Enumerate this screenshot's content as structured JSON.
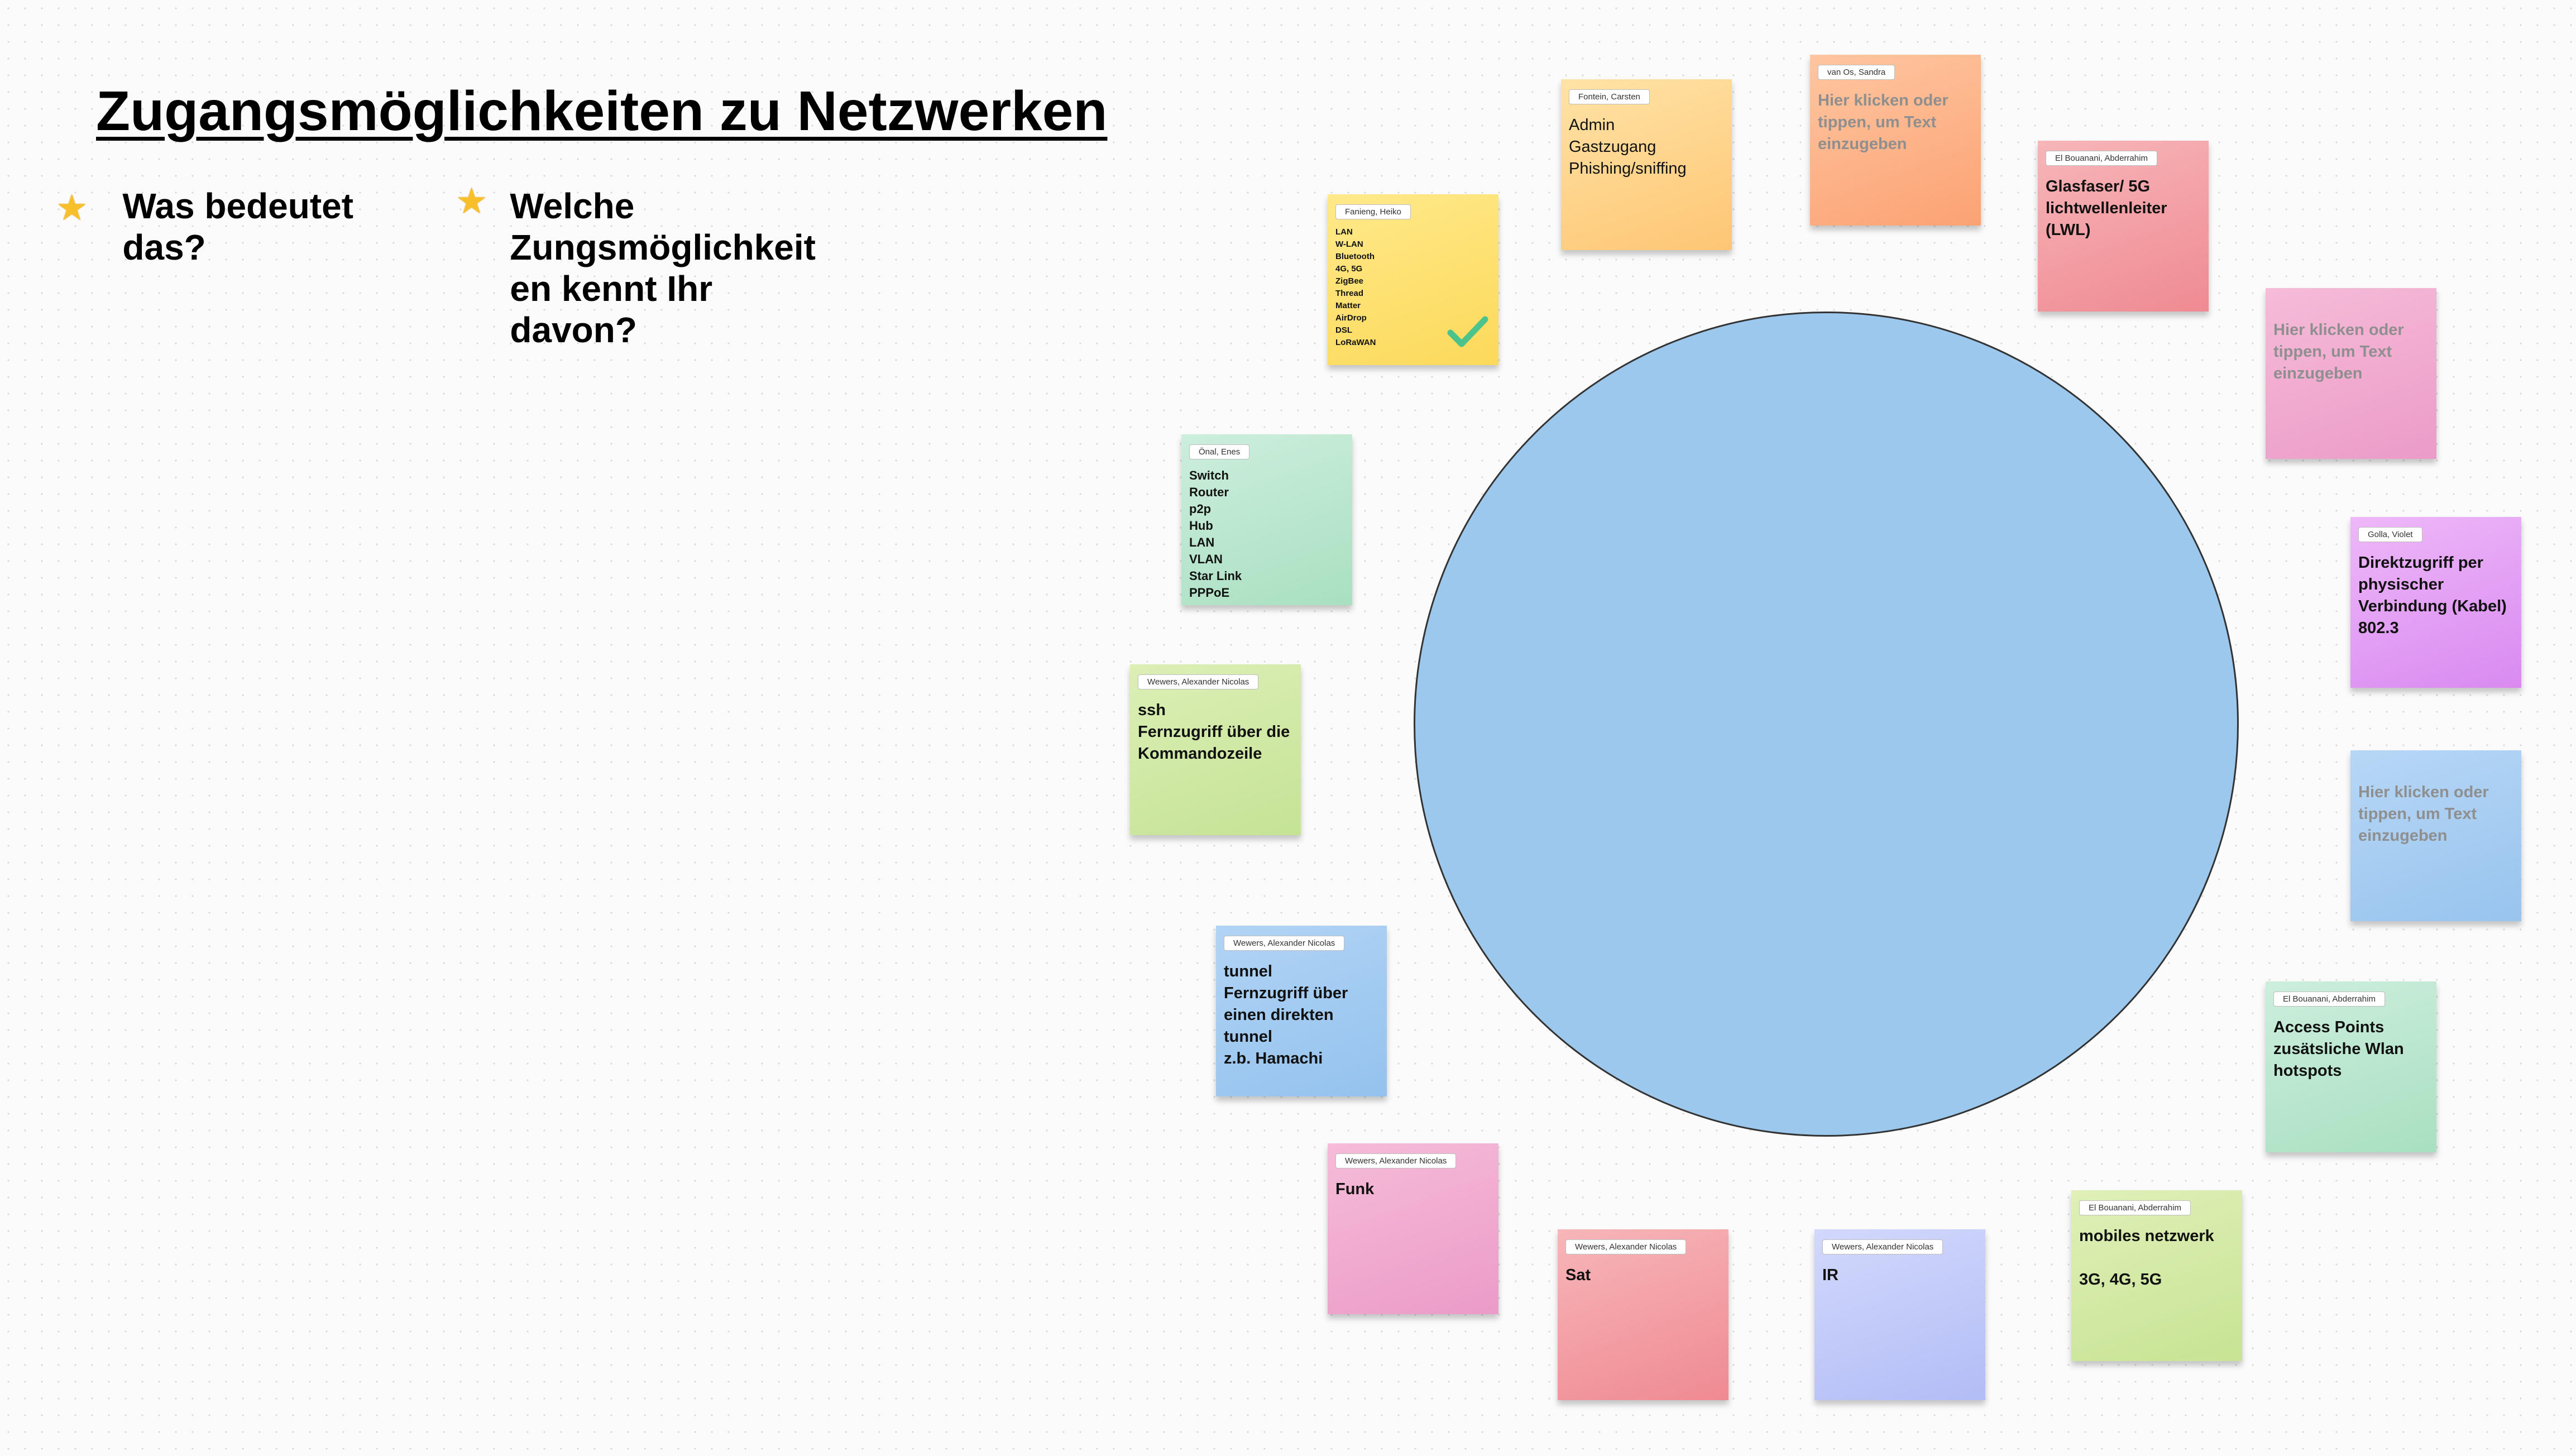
{
  "board": {
    "title": "Zugangsmöglichkeiten zu Netzwerken",
    "questions": [
      {
        "text": "Was bedeutet\ndas?"
      },
      {
        "text": "Welche\nZungsmöglichkeit\nen  kennt Ihr\ndavon?"
      }
    ]
  },
  "colors": {
    "circle": "#9dc8ee",
    "star": "#f7c02b",
    "checkmark": "#4cc38a"
  },
  "notes": [
    {
      "author": "Fanieng, Heiko",
      "text": "LAN\nW-LAN\nBluetooth\n4G, 5G\nZigBee\nThread\nMatter\nAirDrop\nDSL\nLoRaWAN",
      "color": "yellow",
      "icon": "checkmark-icon"
    },
    {
      "author": "Fontein, Carsten",
      "text": "Admin\nGastzugang\nPhishing/sniffing",
      "color": "orange"
    },
    {
      "author": "van Os, Sandra",
      "text": "Hier klicken oder tippen, um Text einzugeben",
      "color": "salmon",
      "placeholder": true
    },
    {
      "author": "El Bouanani, Abderrahim",
      "text": "Glasfaser/ 5G lichtwellenleiter (LWL)",
      "color": "red"
    },
    {
      "author": "",
      "text": "Hier klicken oder tippen, um Text einzugeben",
      "color": "pink",
      "placeholder": true
    },
    {
      "author": "Golla, Violet",
      "text": "Direktzugriff per physischer Verbindung (Kabel) 802.3",
      "color": "purple"
    },
    {
      "author": "",
      "text": "Hier klicken oder tippen, um Text einzugeben",
      "color": "blue",
      "placeholder": true
    },
    {
      "author": "El Bouanani, Abderrahim",
      "text": "Access Points zusätsliche Wlan hotspots",
      "color": "mint"
    },
    {
      "author": "El Bouanani, Abderrahim",
      "text": "mobiles netzwerk\n\n3G, 4G, 5G",
      "color": "green"
    },
    {
      "author": "Wewers, Alexander Nicolas",
      "text": "IR",
      "color": "lavender"
    },
    {
      "author": "Wewers, Alexander Nicolas",
      "text": "Sat",
      "color": "red"
    },
    {
      "author": "Wewers, Alexander Nicolas",
      "text": "Funk",
      "color": "pink"
    },
    {
      "author": "Wewers, Alexander Nicolas",
      "text": "tunnel\nFernzugriff über einen direkten tunnel\nz.b. Hamachi",
      "color": "blue"
    },
    {
      "author": "Wewers, Alexander Nicolas",
      "text": "ssh\nFernzugriff über die Kommandozeile",
      "color": "green"
    },
    {
      "author": "Önal, Enes",
      "text": "Switch\nRouter\np2p\nHub\nLAN\nVLAN\nStar Link\nPPPoE",
      "color": "mint"
    }
  ]
}
